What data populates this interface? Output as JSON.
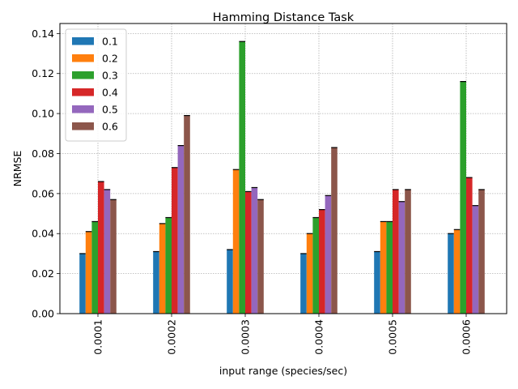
{
  "chart_data": {
    "type": "bar",
    "title": "Hamming Distance Task",
    "xlabel": "input range (species/sec)",
    "ylabel": "NRMSE",
    "categories": [
      "0.0001",
      "0.0002",
      "0.0003",
      "0.0004",
      "0.0005",
      "0.0006"
    ],
    "ylim": [
      0,
      0.145
    ],
    "yticks": [
      "0.00",
      "0.02",
      "0.04",
      "0.06",
      "0.08",
      "0.10",
      "0.12",
      "0.14"
    ],
    "grid": true,
    "legend_position": "top-left",
    "series": [
      {
        "name": "0.1",
        "color": "#1f77b4",
        "values": [
          0.03,
          0.031,
          0.032,
          0.03,
          0.031,
          0.04
        ]
      },
      {
        "name": "0.2",
        "color": "#ff7f0e",
        "values": [
          0.041,
          0.045,
          0.072,
          0.04,
          0.046,
          0.042
        ]
      },
      {
        "name": "0.3",
        "color": "#2ca02c",
        "values": [
          0.046,
          0.048,
          0.136,
          0.048,
          0.046,
          0.116
        ]
      },
      {
        "name": "0.4",
        "color": "#d62728",
        "values": [
          0.066,
          0.073,
          0.061,
          0.052,
          0.062,
          0.068
        ]
      },
      {
        "name": "0.5",
        "color": "#9467bd",
        "values": [
          0.062,
          0.084,
          0.063,
          0.059,
          0.056,
          0.054
        ]
      },
      {
        "name": "0.6",
        "color": "#8c564b",
        "values": [
          0.057,
          0.099,
          0.057,
          0.083,
          0.062,
          0.062
        ]
      }
    ]
  }
}
